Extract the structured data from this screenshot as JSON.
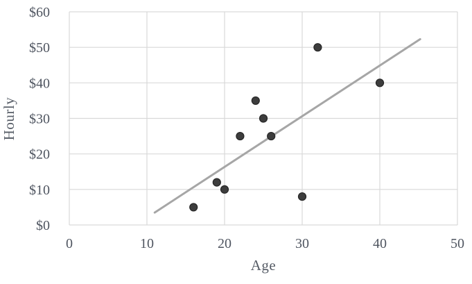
{
  "chart_data": {
    "type": "scatter",
    "title": "",
    "xlabel": "Age",
    "ylabel": "Hourly",
    "xlim": [
      0,
      50
    ],
    "ylim": [
      0,
      60
    ],
    "grid": true,
    "legend": false,
    "x_ticks": [
      0,
      10,
      20,
      30,
      40,
      50
    ],
    "x_tick_labels": [
      "0",
      "10",
      "20",
      "30",
      "40",
      "50"
    ],
    "y_ticks": [
      0,
      10,
      20,
      30,
      40,
      50,
      60
    ],
    "y_tick_labels": [
      "$0",
      "$10",
      "$20",
      "$30",
      "$40",
      "$50",
      "$60"
    ],
    "points": [
      {
        "age": 16,
        "hourly": 5
      },
      {
        "age": 19,
        "hourly": 12
      },
      {
        "age": 20,
        "hourly": 10
      },
      {
        "age": 22,
        "hourly": 25
      },
      {
        "age": 24,
        "hourly": 35
      },
      {
        "age": 25,
        "hourly": 30
      },
      {
        "age": 26,
        "hourly": 25
      },
      {
        "age": 30,
        "hourly": 8
      },
      {
        "age": 32,
        "hourly": 50
      },
      {
        "age": 40,
        "hourly": 40
      }
    ],
    "trendline": {
      "type": "linear",
      "x_start": 11,
      "y_start": 3.5,
      "x_end": 45.2,
      "y_end": 52.3
    },
    "colors": {
      "point_fill": "#3d3d3d",
      "point_border": "#262626",
      "trendline": "#a6a6a6",
      "gridline": "#d9d9d9",
      "tick_label": "#4f5560",
      "axis_title": "#565c66",
      "background": "#ffffff"
    }
  }
}
